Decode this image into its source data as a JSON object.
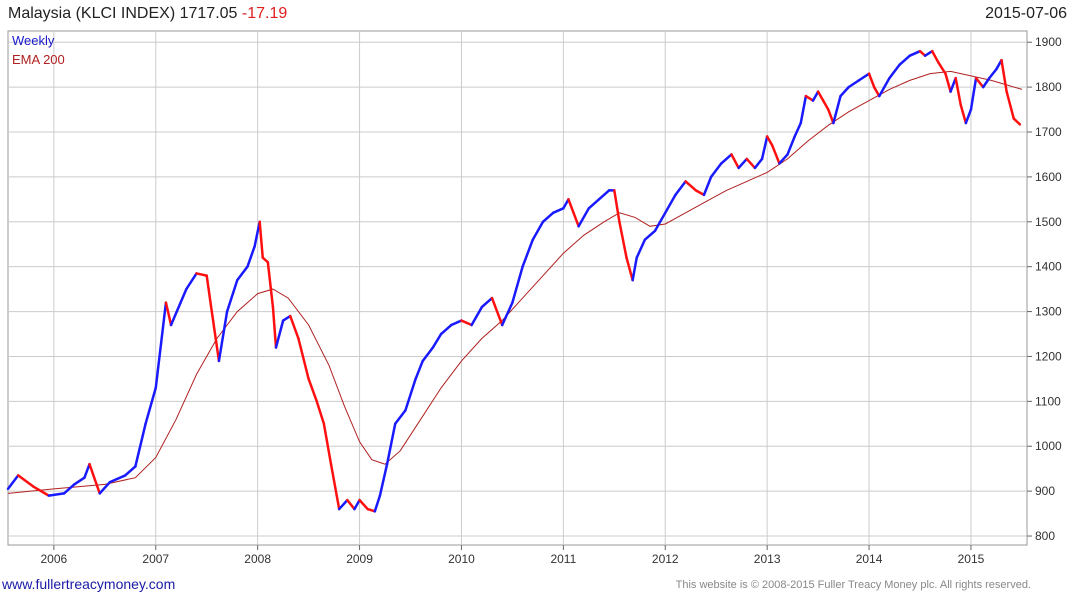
{
  "header": {
    "title": "Malaysia (KLCI INDEX) 1717.05",
    "change": "-17.19",
    "date": "2015-07-06"
  },
  "footer": {
    "link": "www.fullertreacymoney.com",
    "copyright": "This website is © 2008-2015 Fuller Treacy Money plc. All rights reserved."
  },
  "chart_data": {
    "type": "line",
    "title": "Malaysia (KLCI INDEX) 1717.05 -17.19",
    "ylim": [
      780,
      1925
    ],
    "xlim": [
      2005.55,
      2015.55
    ],
    "y_ticks": [
      800,
      900,
      1000,
      1100,
      1200,
      1300,
      1400,
      1500,
      1600,
      1700,
      1800,
      1900
    ],
    "x_ticks": [
      "2006",
      "2007",
      "2008",
      "2009",
      "2010",
      "2011",
      "2012",
      "2013",
      "2014",
      "2015"
    ],
    "x_tick_values": [
      2006,
      2007,
      2008,
      2009,
      2010,
      2011,
      2012,
      2013,
      2014,
      2015
    ],
    "grid": true,
    "legend_position": "top-left",
    "colors": {
      "up": "#1a1aff",
      "down": "#ff1010",
      "ema": "#b02020",
      "grid": "#cccccc"
    },
    "series": [
      {
        "name": "Weekly",
        "points": [
          [
            2005.55,
            905
          ],
          [
            2005.65,
            935
          ],
          [
            2005.8,
            910
          ],
          [
            2005.95,
            890
          ],
          [
            2006.1,
            895
          ],
          [
            2006.2,
            915
          ],
          [
            2006.3,
            930
          ],
          [
            2006.35,
            960
          ],
          [
            2006.45,
            895
          ],
          [
            2006.55,
            920
          ],
          [
            2006.7,
            935
          ],
          [
            2006.8,
            955
          ],
          [
            2006.9,
            1050
          ],
          [
            2007.0,
            1130
          ],
          [
            2007.1,
            1320
          ],
          [
            2007.15,
            1270
          ],
          [
            2007.3,
            1350
          ],
          [
            2007.4,
            1385
          ],
          [
            2007.5,
            1380
          ],
          [
            2007.55,
            1300
          ],
          [
            2007.62,
            1190
          ],
          [
            2007.7,
            1300
          ],
          [
            2007.8,
            1370
          ],
          [
            2007.9,
            1400
          ],
          [
            2007.97,
            1445
          ],
          [
            2008.02,
            1500
          ],
          [
            2008.05,
            1420
          ],
          [
            2008.1,
            1410
          ],
          [
            2008.15,
            1310
          ],
          [
            2008.18,
            1220
          ],
          [
            2008.25,
            1280
          ],
          [
            2008.32,
            1290
          ],
          [
            2008.4,
            1240
          ],
          [
            2008.5,
            1150
          ],
          [
            2008.58,
            1100
          ],
          [
            2008.65,
            1050
          ],
          [
            2008.72,
            960
          ],
          [
            2008.8,
            860
          ],
          [
            2008.88,
            880
          ],
          [
            2008.95,
            860
          ],
          [
            2009.0,
            880
          ],
          [
            2009.08,
            860
          ],
          [
            2009.15,
            855
          ],
          [
            2009.2,
            890
          ],
          [
            2009.27,
            960
          ],
          [
            2009.35,
            1050
          ],
          [
            2009.45,
            1080
          ],
          [
            2009.55,
            1150
          ],
          [
            2009.62,
            1190
          ],
          [
            2009.72,
            1220
          ],
          [
            2009.8,
            1250
          ],
          [
            2009.9,
            1270
          ],
          [
            2010.0,
            1280
          ],
          [
            2010.1,
            1270
          ],
          [
            2010.2,
            1310
          ],
          [
            2010.3,
            1330
          ],
          [
            2010.4,
            1270
          ],
          [
            2010.5,
            1320
          ],
          [
            2010.6,
            1400
          ],
          [
            2010.7,
            1460
          ],
          [
            2010.8,
            1500
          ],
          [
            2010.9,
            1520
          ],
          [
            2011.0,
            1530
          ],
          [
            2011.05,
            1550
          ],
          [
            2011.1,
            1520
          ],
          [
            2011.15,
            1490
          ],
          [
            2011.25,
            1530
          ],
          [
            2011.35,
            1550
          ],
          [
            2011.45,
            1570
          ],
          [
            2011.5,
            1570
          ],
          [
            2011.55,
            1500
          ],
          [
            2011.62,
            1420
          ],
          [
            2011.68,
            1370
          ],
          [
            2011.72,
            1420
          ],
          [
            2011.8,
            1460
          ],
          [
            2011.9,
            1480
          ],
          [
            2012.0,
            1520
          ],
          [
            2012.1,
            1560
          ],
          [
            2012.2,
            1590
          ],
          [
            2012.3,
            1570
          ],
          [
            2012.38,
            1560
          ],
          [
            2012.45,
            1600
          ],
          [
            2012.55,
            1630
          ],
          [
            2012.65,
            1650
          ],
          [
            2012.72,
            1620
          ],
          [
            2012.8,
            1640
          ],
          [
            2012.88,
            1620
          ],
          [
            2012.95,
            1640
          ],
          [
            2013.0,
            1690
          ],
          [
            2013.05,
            1670
          ],
          [
            2013.12,
            1630
          ],
          [
            2013.2,
            1650
          ],
          [
            2013.27,
            1690
          ],
          [
            2013.33,
            1720
          ],
          [
            2013.38,
            1780
          ],
          [
            2013.45,
            1770
          ],
          [
            2013.5,
            1790
          ],
          [
            2013.55,
            1770
          ],
          [
            2013.6,
            1750
          ],
          [
            2013.65,
            1720
          ],
          [
            2013.72,
            1780
          ],
          [
            2013.8,
            1800
          ],
          [
            2013.9,
            1815
          ],
          [
            2014.0,
            1830
          ],
          [
            2014.05,
            1800
          ],
          [
            2014.1,
            1780
          ],
          [
            2014.2,
            1820
          ],
          [
            2014.3,
            1850
          ],
          [
            2014.4,
            1870
          ],
          [
            2014.5,
            1880
          ],
          [
            2014.55,
            1870
          ],
          [
            2014.62,
            1880
          ],
          [
            2014.68,
            1855
          ],
          [
            2014.75,
            1830
          ],
          [
            2014.8,
            1790
          ],
          [
            2014.85,
            1820
          ],
          [
            2014.9,
            1760
          ],
          [
            2014.95,
            1720
          ],
          [
            2015.0,
            1750
          ],
          [
            2015.05,
            1820
          ],
          [
            2015.12,
            1800
          ],
          [
            2015.18,
            1820
          ],
          [
            2015.25,
            1840
          ],
          [
            2015.3,
            1860
          ],
          [
            2015.35,
            1790
          ],
          [
            2015.42,
            1730
          ],
          [
            2015.48,
            1717
          ]
        ]
      },
      {
        "name": "EMA 200",
        "points": [
          [
            2005.55,
            895
          ],
          [
            2006.0,
            905
          ],
          [
            2006.5,
            915
          ],
          [
            2006.8,
            930
          ],
          [
            2007.0,
            975
          ],
          [
            2007.2,
            1060
          ],
          [
            2007.4,
            1160
          ],
          [
            2007.6,
            1240
          ],
          [
            2007.8,
            1300
          ],
          [
            2008.0,
            1340
          ],
          [
            2008.15,
            1350
          ],
          [
            2008.3,
            1330
          ],
          [
            2008.5,
            1270
          ],
          [
            2008.7,
            1180
          ],
          [
            2008.85,
            1090
          ],
          [
            2009.0,
            1010
          ],
          [
            2009.12,
            970
          ],
          [
            2009.25,
            960
          ],
          [
            2009.4,
            990
          ],
          [
            2009.6,
            1060
          ],
          [
            2009.8,
            1130
          ],
          [
            2010.0,
            1190
          ],
          [
            2010.2,
            1240
          ],
          [
            2010.4,
            1280
          ],
          [
            2010.6,
            1330
          ],
          [
            2010.8,
            1380
          ],
          [
            2011.0,
            1430
          ],
          [
            2011.2,
            1470
          ],
          [
            2011.4,
            1500
          ],
          [
            2011.55,
            1520
          ],
          [
            2011.7,
            1510
          ],
          [
            2011.85,
            1490
          ],
          [
            2012.0,
            1495
          ],
          [
            2012.2,
            1520
          ],
          [
            2012.4,
            1545
          ],
          [
            2012.6,
            1570
          ],
          [
            2012.8,
            1590
          ],
          [
            2013.0,
            1610
          ],
          [
            2013.2,
            1640
          ],
          [
            2013.4,
            1680
          ],
          [
            2013.6,
            1715
          ],
          [
            2013.8,
            1745
          ],
          [
            2014.0,
            1770
          ],
          [
            2014.2,
            1795
          ],
          [
            2014.4,
            1815
          ],
          [
            2014.6,
            1830
          ],
          [
            2014.8,
            1835
          ],
          [
            2015.0,
            1825
          ],
          [
            2015.2,
            1815
          ],
          [
            2015.35,
            1805
          ],
          [
            2015.5,
            1795
          ]
        ]
      }
    ]
  }
}
